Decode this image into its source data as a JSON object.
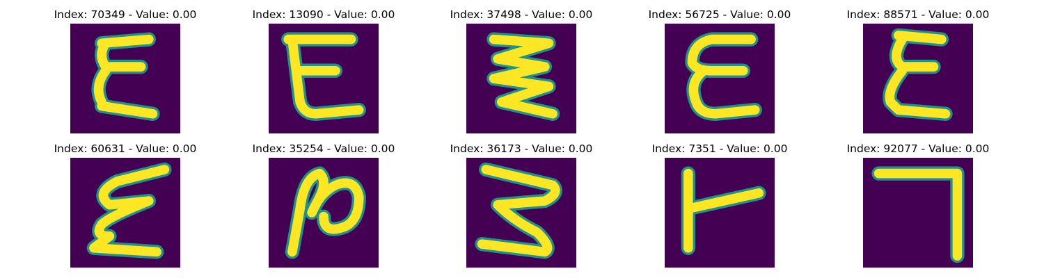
{
  "panels": [
    {
      "title": "Index: 70349 - Value: 0.00",
      "glyph": "epsilon-a"
    },
    {
      "title": "Index: 13090 - Value: 0.00",
      "glyph": "epsilon-b"
    },
    {
      "title": "Index: 37498 - Value: 0.00",
      "glyph": "zigzag"
    },
    {
      "title": "Index: 56725 - Value: 0.00",
      "glyph": "epsilon-c"
    },
    {
      "title": "Index: 88571 - Value: 0.00",
      "glyph": "epsilon-d"
    },
    {
      "title": "Index: 60631 - Value: 0.00",
      "glyph": "epsilon-slanted"
    },
    {
      "title": "Index: 35254 - Value: 0.00",
      "glyph": "n-loop"
    },
    {
      "title": "Index: 36173 - Value: 0.00",
      "glyph": "three-z"
    },
    {
      "title": "Index: 7351 - Value: 0.00",
      "glyph": "t-sideways"
    },
    {
      "title": "Index: 92077 - Value: 0.00",
      "glyph": "seven-corner"
    }
  ],
  "colors": {
    "background": "#440154",
    "stroke": "#fde725",
    "edge": "#21918c"
  }
}
